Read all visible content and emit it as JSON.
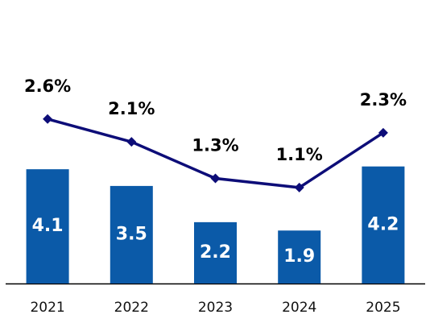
{
  "chart_data": {
    "type": "bar",
    "categories": [
      "2021",
      "2022",
      "2023",
      "2024",
      "2025"
    ],
    "series": [
      {
        "type": "bar",
        "color": "#0b5aa8",
        "values": [
          4.1,
          3.5,
          2.2,
          1.9,
          4.2
        ]
      },
      {
        "type": "line",
        "axis": "y2",
        "color": "#0d0d78",
        "values": [
          2.6,
          2.1,
          1.3,
          1.1,
          2.3
        ],
        "value_labels": [
          "2.6%",
          "2.1%",
          "1.3%",
          "1.1%",
          "2.3%"
        ]
      }
    ],
    "ylim": [
      0,
      10
    ],
    "y2lim": [
      -1,
      5.1
    ]
  }
}
